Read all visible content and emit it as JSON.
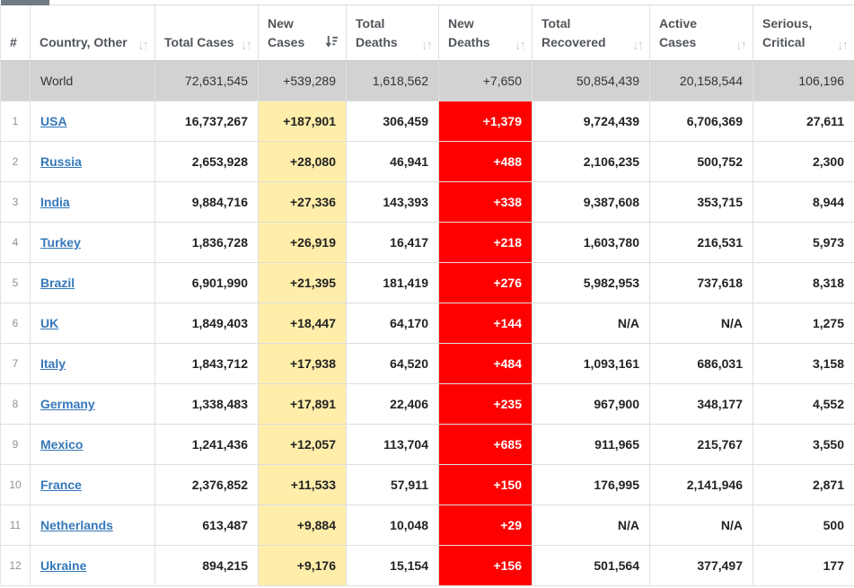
{
  "table": {
    "sort_status": {
      "active_column": "New Cases",
      "direction": "desc"
    },
    "colors": {
      "new_cases_bg": "#FFEEAA",
      "new_deaths_bg": "#FF0000",
      "new_deaths_text": "#FFFFFF",
      "world_row_bg": "#D2D2D2",
      "country_link": "#3578B9",
      "tab_fragment": "#6E7A84"
    },
    "columns": [
      {
        "key": "rank",
        "label": "#",
        "sortable": false,
        "sort_active": false
      },
      {
        "key": "country",
        "label": "Country, Other",
        "sortable": true,
        "sort_active": false
      },
      {
        "key": "total_cases",
        "label": "Total Cases",
        "sortable": true,
        "sort_active": false
      },
      {
        "key": "new_cases",
        "label": "New Cases",
        "sortable": true,
        "sort_active": true
      },
      {
        "key": "total_deaths",
        "label": "Total Deaths",
        "sortable": true,
        "sort_active": false
      },
      {
        "key": "new_deaths",
        "label": "New Deaths",
        "sortable": true,
        "sort_active": false
      },
      {
        "key": "total_recovered",
        "label": "Total Recovered",
        "sortable": true,
        "sort_active": false
      },
      {
        "key": "active_cases",
        "label": "Active Cases",
        "sortable": true,
        "sort_active": false
      },
      {
        "key": "serious_critical",
        "label": "Serious, Critical",
        "sortable": true,
        "sort_active": false
      }
    ],
    "world_row": {
      "rank": "",
      "label": "World",
      "total_cases": "72,631,545",
      "new_cases": "+539,289",
      "total_deaths": "1,618,562",
      "new_deaths": "+7,650",
      "total_recovered": "50,854,439",
      "active_cases": "20,158,544",
      "serious_critical": "106,196"
    },
    "rows": [
      {
        "rank": "1",
        "country": "USA",
        "total_cases": "16,737,267",
        "new_cases": "+187,901",
        "total_deaths": "306,459",
        "new_deaths": "+1,379",
        "total_recovered": "9,724,439",
        "active_cases": "6,706,369",
        "serious_critical": "27,611"
      },
      {
        "rank": "2",
        "country": "Russia",
        "total_cases": "2,653,928",
        "new_cases": "+28,080",
        "total_deaths": "46,941",
        "new_deaths": "+488",
        "total_recovered": "2,106,235",
        "active_cases": "500,752",
        "serious_critical": "2,300"
      },
      {
        "rank": "3",
        "country": "India",
        "total_cases": "9,884,716",
        "new_cases": "+27,336",
        "total_deaths": "143,393",
        "new_deaths": "+338",
        "total_recovered": "9,387,608",
        "active_cases": "353,715",
        "serious_critical": "8,944"
      },
      {
        "rank": "4",
        "country": "Turkey",
        "total_cases": "1,836,728",
        "new_cases": "+26,919",
        "total_deaths": "16,417",
        "new_deaths": "+218",
        "total_recovered": "1,603,780",
        "active_cases": "216,531",
        "serious_critical": "5,973"
      },
      {
        "rank": "5",
        "country": "Brazil",
        "total_cases": "6,901,990",
        "new_cases": "+21,395",
        "total_deaths": "181,419",
        "new_deaths": "+276",
        "total_recovered": "5,982,953",
        "active_cases": "737,618",
        "serious_critical": "8,318"
      },
      {
        "rank": "6",
        "country": "UK",
        "total_cases": "1,849,403",
        "new_cases": "+18,447",
        "total_deaths": "64,170",
        "new_deaths": "+144",
        "total_recovered": "N/A",
        "active_cases": "N/A",
        "serious_critical": "1,275"
      },
      {
        "rank": "7",
        "country": "Italy",
        "total_cases": "1,843,712",
        "new_cases": "+17,938",
        "total_deaths": "64,520",
        "new_deaths": "+484",
        "total_recovered": "1,093,161",
        "active_cases": "686,031",
        "serious_critical": "3,158"
      },
      {
        "rank": "8",
        "country": "Germany",
        "total_cases": "1,338,483",
        "new_cases": "+17,891",
        "total_deaths": "22,406",
        "new_deaths": "+235",
        "total_recovered": "967,900",
        "active_cases": "348,177",
        "serious_critical": "4,552"
      },
      {
        "rank": "9",
        "country": "Mexico",
        "total_cases": "1,241,436",
        "new_cases": "+12,057",
        "total_deaths": "113,704",
        "new_deaths": "+685",
        "total_recovered": "911,965",
        "active_cases": "215,767",
        "serious_critical": "3,550"
      },
      {
        "rank": "10",
        "country": "France",
        "total_cases": "2,376,852",
        "new_cases": "+11,533",
        "total_deaths": "57,911",
        "new_deaths": "+150",
        "total_recovered": "176,995",
        "active_cases": "2,141,946",
        "serious_critical": "2,871"
      },
      {
        "rank": "11",
        "country": "Netherlands",
        "total_cases": "613,487",
        "new_cases": "+9,884",
        "total_deaths": "10,048",
        "new_deaths": "+29",
        "total_recovered": "N/A",
        "active_cases": "N/A",
        "serious_critical": "500"
      },
      {
        "rank": "12",
        "country": "Ukraine",
        "total_cases": "894,215",
        "new_cases": "+9,176",
        "total_deaths": "15,154",
        "new_deaths": "+156",
        "total_recovered": "501,564",
        "active_cases": "377,497",
        "serious_critical": "177"
      }
    ]
  }
}
